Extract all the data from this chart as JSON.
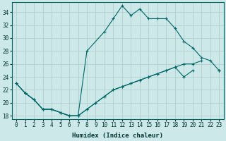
{
  "xlabel": "Humidex (Indice chaleur)",
  "background_color": "#cce8e8",
  "grid_color": "#aacccc",
  "line_color": "#006666",
  "xlim": [
    -0.5,
    23.5
  ],
  "ylim": [
    17.5,
    35.5
  ],
  "xticks": [
    0,
    1,
    2,
    3,
    4,
    5,
    6,
    7,
    8,
    9,
    10,
    11,
    12,
    13,
    14,
    15,
    16,
    17,
    18,
    19,
    20,
    21,
    22,
    23
  ],
  "yticks": [
    18,
    20,
    22,
    24,
    26,
    28,
    30,
    32,
    34
  ],
  "line1_x": [
    0,
    1,
    2,
    3,
    4,
    5,
    6,
    7,
    8,
    10,
    11,
    12,
    13,
    14,
    15,
    16,
    17,
    18,
    19,
    20,
    21,
    22,
    23
  ],
  "line1_y": [
    23,
    21.5,
    20.5,
    19,
    19,
    18.5,
    18,
    18,
    28,
    31,
    33,
    35,
    33.5,
    34.5,
    33,
    33,
    33,
    31.5,
    29.5,
    28.5,
    27,
    26.5,
    25
  ],
  "line2_x": [
    0,
    1,
    2,
    3,
    4,
    5,
    6,
    7,
    8,
    9,
    10,
    11,
    12,
    13,
    14,
    15,
    16,
    17,
    18,
    19,
    20,
    21,
    22,
    23
  ],
  "line2_y": [
    23,
    21.5,
    20.5,
    19,
    19,
    18.5,
    18,
    18,
    19,
    20,
    21,
    22,
    22.5,
    23,
    23.5,
    24,
    24.5,
    25,
    25.5,
    26,
    26,
    26.5,
    null,
    25
  ],
  "line3_x": [
    0,
    1,
    2,
    3,
    4,
    5,
    6,
    7,
    8,
    9,
    10,
    11,
    12,
    13,
    14,
    15,
    16,
    17,
    18,
    19,
    20,
    21,
    22,
    23
  ],
  "line3_y": [
    23,
    21.5,
    20.5,
    19,
    19,
    18.5,
    18,
    18,
    19,
    20,
    21,
    22,
    22.5,
    23,
    23.5,
    24,
    24.5,
    25,
    25.5,
    24,
    25,
    null,
    null,
    25
  ]
}
